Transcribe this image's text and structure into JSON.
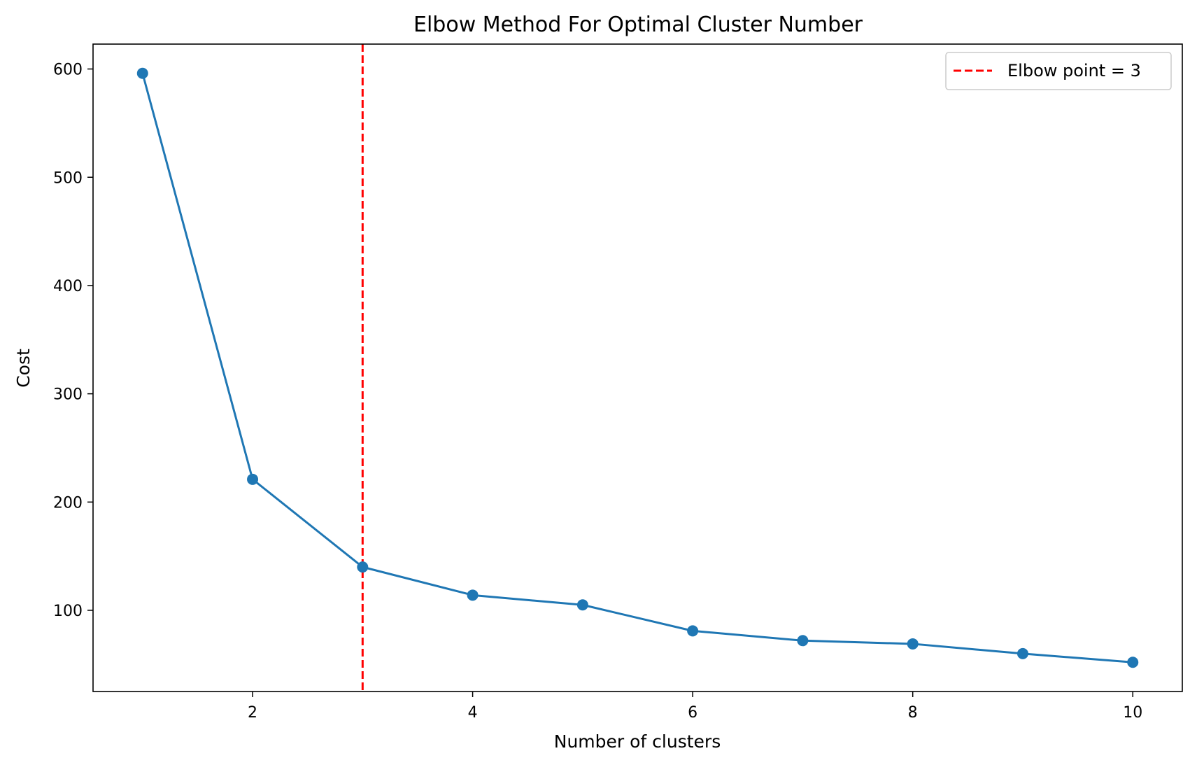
{
  "chart_data": {
    "type": "line",
    "title": "Elbow Method For Optimal Cluster Number",
    "xlabel": "Number of clusters",
    "ylabel": "Cost",
    "xlim": [
      0.55,
      10.45
    ],
    "ylim": [
      25,
      623
    ],
    "xticks": [
      2,
      4,
      6,
      8,
      10
    ],
    "yticks": [
      100,
      200,
      300,
      400,
      500,
      600
    ],
    "grid": false,
    "legend_position": "top-right",
    "series": [
      {
        "color": "#1f77b4",
        "marker": "circle",
        "x": [
          1,
          2,
          3,
          4,
          5,
          6,
          7,
          8,
          9,
          10
        ],
        "y": [
          596,
          221,
          140,
          114,
          105,
          81,
          72,
          69,
          60,
          52
        ]
      }
    ],
    "annotations": [
      {
        "type": "vline",
        "x": 3,
        "color": "#ff0000",
        "style": "dashed",
        "label": "Elbow point = 3"
      }
    ]
  }
}
